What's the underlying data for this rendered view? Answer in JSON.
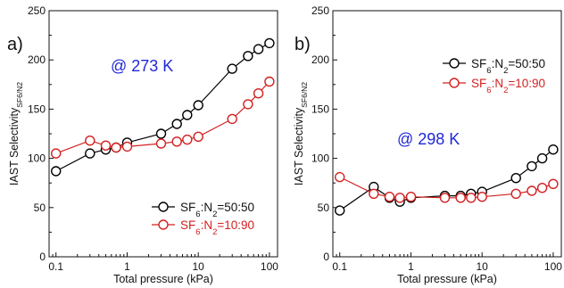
{
  "chart_data": [
    {
      "type": "line",
      "panel_label": "a)",
      "annotation": "@ 273 K",
      "xlabel": "Total pressure (kPa)",
      "ylabel_main": "IAST Selectivity",
      "ylabel_sub": "SF6/N2",
      "x_scale": "log",
      "xlim": [
        0.08,
        130
      ],
      "ylim": [
        0,
        250
      ],
      "xticks": [
        0.1,
        1,
        10,
        100
      ],
      "xtick_labels": [
        "0.1",
        "1",
        "10",
        "100"
      ],
      "yticks": [
        0,
        50,
        100,
        150,
        200,
        250
      ],
      "ytick_labels": [
        "0",
        "50",
        "100",
        "150",
        "200",
        "250"
      ],
      "legend_position": "lower-right",
      "series": [
        {
          "name": "SF6:N2=50:50",
          "name_parts": [
            "SF",
            "6",
            ":N",
            "2",
            "=50:50"
          ],
          "color": "#000000",
          "x": [
            0.1,
            0.3,
            0.5,
            0.7,
            1,
            3,
            5,
            7,
            10,
            30,
            50,
            70,
            100
          ],
          "y": [
            87,
            105,
            109,
            111,
            116,
            125,
            135,
            144,
            154,
            191,
            204,
            211,
            217
          ]
        },
        {
          "name": "SF6:N2=10:90",
          "name_parts": [
            "SF",
            "6",
            ":N",
            "2",
            "=10:90"
          ],
          "color": "#d32020",
          "x": [
            0.1,
            0.3,
            0.5,
            0.7,
            1,
            3,
            5,
            7,
            10,
            30,
            50,
            70,
            100
          ],
          "y": [
            105,
            118,
            113,
            111,
            112,
            115,
            117,
            119,
            122,
            140,
            155,
            166,
            178
          ]
        }
      ]
    },
    {
      "type": "line",
      "panel_label": "b)",
      "annotation": "@ 298 K",
      "xlabel": "Total pressure (kPa)",
      "ylabel_main": "IAST Selectivity",
      "ylabel_sub": "SF6/N2",
      "x_scale": "log",
      "xlim": [
        0.08,
        130
      ],
      "ylim": [
        0,
        250
      ],
      "xticks": [
        0.1,
        1,
        10,
        100
      ],
      "xtick_labels": [
        "0.1",
        "1",
        "10",
        "100"
      ],
      "yticks": [
        0,
        50,
        100,
        150,
        200,
        250
      ],
      "ytick_labels": [
        "0",
        "50",
        "100",
        "150",
        "200",
        "250"
      ],
      "legend_position": "top-right",
      "series": [
        {
          "name": "SF6:N2=50:50",
          "name_parts": [
            "SF",
            "6",
            ":N",
            "2",
            "=50:50"
          ],
          "color": "#000000",
          "x": [
            0.1,
            0.3,
            0.5,
            0.7,
            1,
            3,
            5,
            7,
            10,
            30,
            50,
            70,
            100
          ],
          "y": [
            47,
            71,
            60,
            56,
            60,
            62,
            62,
            64,
            66,
            80,
            92,
            100,
            109
          ]
        },
        {
          "name": "SF6:N2=10:90",
          "name_parts": [
            "SF",
            "6",
            ":N",
            "2",
            "=10:90"
          ],
          "color": "#d32020",
          "x": [
            0.1,
            0.3,
            0.5,
            0.7,
            1,
            3,
            5,
            7,
            10,
            30,
            50,
            70,
            100
          ],
          "y": [
            81,
            64,
            61,
            60,
            61,
            60,
            60,
            60,
            61,
            64,
            67,
            70,
            74
          ]
        }
      ]
    }
  ]
}
